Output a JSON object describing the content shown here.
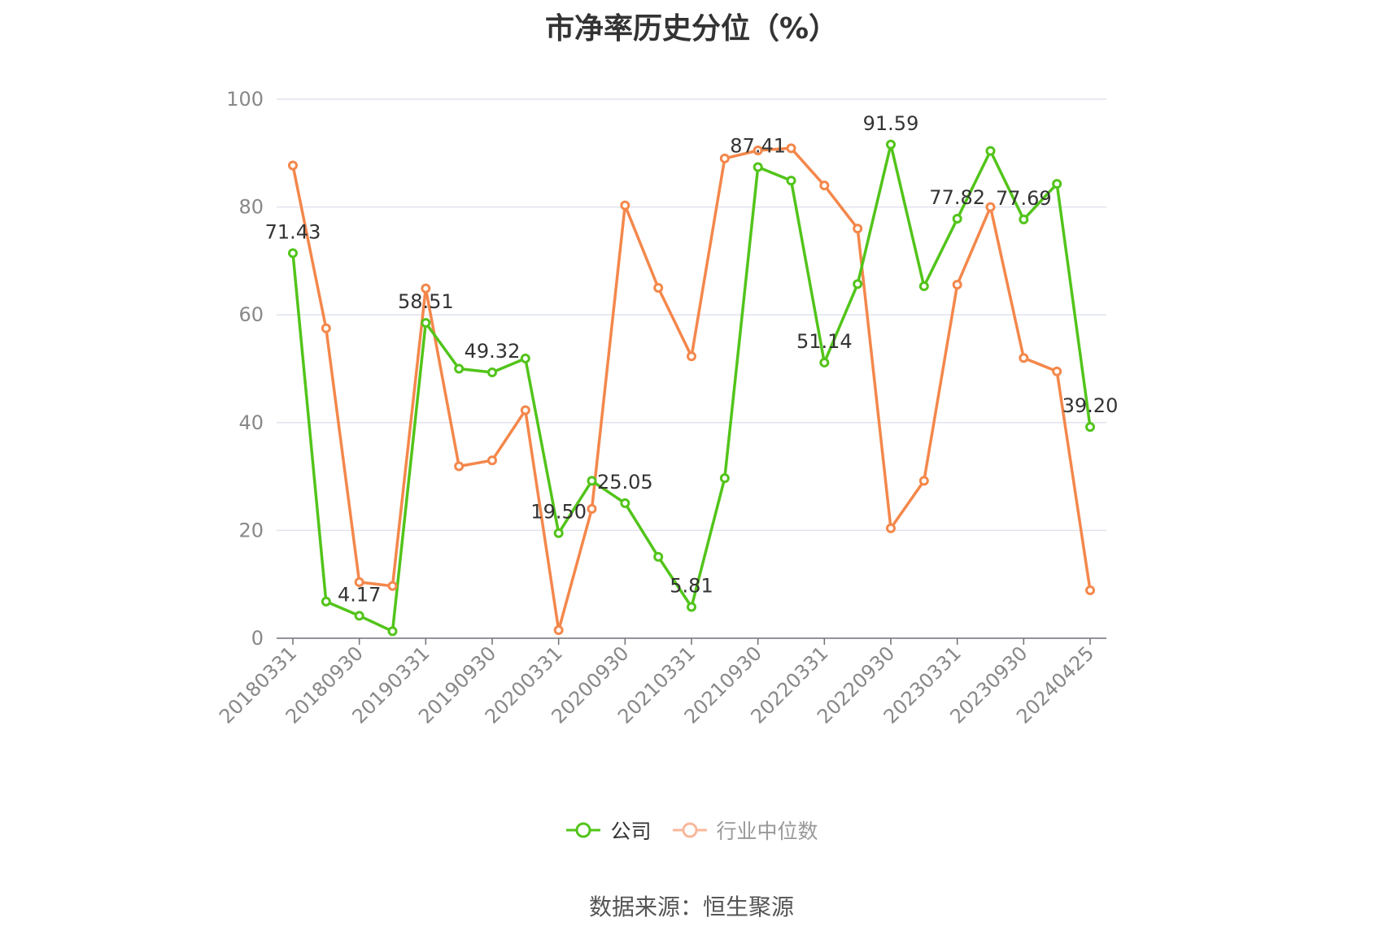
{
  "chart_data": {
    "type": "line",
    "title": "市净率历史分位（%）",
    "ylim": [
      0,
      100
    ],
    "yticks": [
      0,
      20,
      40,
      60,
      80,
      100
    ],
    "xtick_labels": [
      "20180331",
      "20180930",
      "20190331",
      "20190930",
      "20200331",
      "20200930",
      "20210331",
      "20210930",
      "20220331",
      "20220930",
      "20230331",
      "20230930",
      "20240425"
    ],
    "grid": true,
    "legend_position": "bottom",
    "series": [
      {
        "name": "公司",
        "color": "#52c41a",
        "values": [
          71.43,
          6.8,
          4.17,
          1.3,
          58.51,
          50.0,
          49.32,
          51.9,
          19.5,
          29.2,
          25.05,
          15.1,
          5.81,
          29.7,
          87.41,
          84.9,
          51.14,
          65.7,
          91.59,
          65.3,
          77.82,
          90.4,
          77.69,
          84.3,
          39.2
        ],
        "point_labels": {
          "0": "71.43",
          "2": "4.17",
          "4": "58.51",
          "6": "49.32",
          "8": "19.50",
          "10": "25.05",
          "12": "5.81",
          "14": "87.41",
          "16": "51.14",
          "18": "91.59",
          "20": "77.82",
          "22": "77.69",
          "24": "39.20"
        }
      },
      {
        "name": "行业中位数",
        "color": "#f4874b",
        "values": [
          87.7,
          57.5,
          10.4,
          9.7,
          64.9,
          31.9,
          33.0,
          42.3,
          1.5,
          24.0,
          80.3,
          65.0,
          52.3,
          89.0,
          90.5,
          90.9,
          84.0,
          76.0,
          20.4,
          29.2,
          65.6,
          80.0,
          52.0,
          49.5,
          8.9
        ]
      }
    ]
  },
  "source": "数据来源：恒生聚源"
}
